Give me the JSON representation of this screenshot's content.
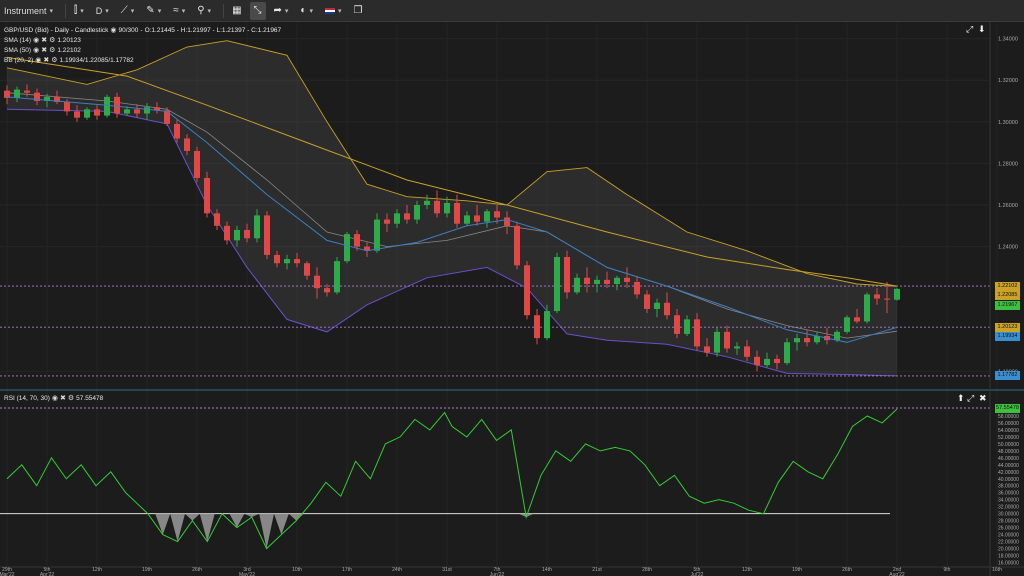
{
  "toolbar": {
    "instrument_label": "Instrument",
    "timeframe_label": "D",
    "icons": [
      "chart-type-icon",
      "draw-line-icon",
      "pencil-icon",
      "indicators-icon",
      "tools-icon",
      "layout-grid-icon",
      "share-icon",
      "theme-icon",
      "language-flag-icon",
      "window-icon"
    ]
  },
  "main_panel": {
    "title_line": "GBP/USD (Bid) - Daily - Candlestick",
    "bars_info": "90/300",
    "ohlc": "O:1.21445 - H:1.21997 - L:1.21397 - C:1.21967",
    "indicators": [
      {
        "name": "SMA (14)",
        "value": "1.20123"
      },
      {
        "name": "SMA (50)",
        "value": "1.22102"
      },
      {
        "name": "BB (20, 2)",
        "value": "1.19934/1.22085/1.17782"
      }
    ]
  },
  "rsi_panel": {
    "name": "RSI (14, 70, 30)",
    "value": "57.55478"
  },
  "axis_flags": [
    {
      "label": "1.22102",
      "price": 1.22102,
      "bg": "#c9a227"
    },
    {
      "label": "1.22085",
      "price": 1.22085,
      "bg": "#c9a227"
    },
    {
      "label": "1.21967",
      "price": 1.21967,
      "bg": "#3fbf3f"
    },
    {
      "label": "1.20123",
      "price": 1.20123,
      "bg": "#c9a227"
    },
    {
      "label": "1.19934",
      "price": 1.19934,
      "bg": "#3a8fd0"
    },
    {
      "label": "1.17782",
      "price": 1.17782,
      "bg": "#3a8fd0"
    }
  ],
  "rsi_flag": {
    "label": "57.55478",
    "bg": "#3fbf3f"
  },
  "colors": {
    "up": "#2eaa4a",
    "down": "#e04848",
    "sma14": "#3a7fc0",
    "sma50": "#c9a227",
    "bb_outer": "#c9a227",
    "bb_lower": "#6a4fd0",
    "rsi": "#33cc33",
    "hline": "#b07cd0"
  },
  "chart_data": {
    "type": "candlestick",
    "instrument": "GBP/USD (Bid)",
    "timeframe": "Daily",
    "price_axis": {
      "range": [
        1.172,
        1.348
      ],
      "ticks": [
        1.34,
        1.32,
        1.3,
        1.28,
        1.26,
        1.24,
        1.18
      ],
      "tick_labels": [
        "1.34000",
        "1.32000",
        "1.30000",
        "1.28000",
        "1.26000",
        "1.24000",
        "1.18000"
      ]
    },
    "x_labels": [
      {
        "idx": 0,
        "label": "29th",
        "sub": "Mar'22"
      },
      {
        "idx": 4,
        "label": "5th",
        "sub": "Apr'22"
      },
      {
        "idx": 9,
        "label": "12th"
      },
      {
        "idx": 14,
        "label": "19th"
      },
      {
        "idx": 19,
        "label": "26th"
      },
      {
        "idx": 24,
        "label": "3rd",
        "sub": "May'22"
      },
      {
        "idx": 29,
        "label": "10th"
      },
      {
        "idx": 34,
        "label": "17th"
      },
      {
        "idx": 39,
        "label": "24th"
      },
      {
        "idx": 44,
        "label": "31st"
      },
      {
        "idx": 49,
        "label": "7th",
        "sub": "Jun'22"
      },
      {
        "idx": 54,
        "label": "14th"
      },
      {
        "idx": 59,
        "label": "21st"
      },
      {
        "idx": 64,
        "label": "28th"
      },
      {
        "idx": 69,
        "label": "5th",
        "sub": "Jul'22"
      },
      {
        "idx": 74,
        "label": "12th"
      },
      {
        "idx": 79,
        "label": "19th"
      },
      {
        "idx": 84,
        "label": "26th"
      },
      {
        "idx": 89,
        "label": "2nd",
        "sub": "Aug'22"
      },
      {
        "idx": 94,
        "label": "9th"
      },
      {
        "idx": 99,
        "label": "16th"
      }
    ],
    "candles": [
      [
        1.315,
        1.3175,
        1.3085,
        1.3115
      ],
      [
        1.3115,
        1.317,
        1.3095,
        1.3155
      ],
      [
        1.315,
        1.318,
        1.312,
        1.314
      ],
      [
        1.314,
        1.316,
        1.308,
        1.31
      ],
      [
        1.31,
        1.3135,
        1.307,
        1.312
      ],
      [
        1.312,
        1.315,
        1.3085,
        1.3095
      ],
      [
        1.3095,
        1.311,
        1.303,
        1.305
      ],
      [
        1.305,
        1.308,
        1.3,
        1.302
      ],
      [
        1.302,
        1.307,
        1.301,
        1.306
      ],
      [
        1.306,
        1.308,
        1.301,
        1.303
      ],
      [
        1.303,
        1.313,
        1.302,
        1.312
      ],
      [
        1.312,
        1.314,
        1.302,
        1.304
      ],
      [
        1.304,
        1.3075,
        1.303,
        1.306
      ],
      [
        1.306,
        1.3085,
        1.302,
        1.304
      ],
      [
        1.304,
        1.309,
        1.301,
        1.307
      ],
      [
        1.307,
        1.3095,
        1.304,
        1.3055
      ],
      [
        1.3055,
        1.307,
        1.298,
        1.299
      ],
      [
        1.299,
        1.301,
        1.29,
        1.292
      ],
      [
        1.292,
        1.294,
        1.284,
        1.286
      ],
      [
        1.286,
        1.288,
        1.271,
        1.273
      ],
      [
        1.273,
        1.276,
        1.254,
        1.256
      ],
      [
        1.256,
        1.258,
        1.248,
        1.25
      ],
      [
        1.25,
        1.252,
        1.241,
        1.243
      ],
      [
        1.243,
        1.25,
        1.24,
        1.248
      ],
      [
        1.248,
        1.251,
        1.242,
        1.244
      ],
      [
        1.244,
        1.258,
        1.242,
        1.255
      ],
      [
        1.255,
        1.257,
        1.234,
        1.236
      ],
      [
        1.236,
        1.238,
        1.23,
        1.232
      ],
      [
        1.232,
        1.236,
        1.229,
        1.234
      ],
      [
        1.234,
        1.237,
        1.23,
        1.232
      ],
      [
        1.232,
        1.233,
        1.224,
        1.226
      ],
      [
        1.226,
        1.23,
        1.215,
        1.22
      ],
      [
        1.22,
        1.222,
        1.216,
        1.218
      ],
      [
        1.218,
        1.235,
        1.217,
        1.233
      ],
      [
        1.233,
        1.247,
        1.232,
        1.246
      ],
      [
        1.246,
        1.248,
        1.238,
        1.24
      ],
      [
        1.24,
        1.242,
        1.235,
        1.238
      ],
      [
        1.238,
        1.256,
        1.237,
        1.253
      ],
      [
        1.253,
        1.256,
        1.247,
        1.251
      ],
      [
        1.251,
        1.258,
        1.249,
        1.256
      ],
      [
        1.256,
        1.26,
        1.251,
        1.253
      ],
      [
        1.253,
        1.262,
        1.251,
        1.26
      ],
      [
        1.26,
        1.265,
        1.258,
        1.262
      ],
      [
        1.262,
        1.267,
        1.254,
        1.256
      ],
      [
        1.256,
        1.264,
        1.254,
        1.261
      ],
      [
        1.261,
        1.265,
        1.249,
        1.251
      ],
      [
        1.251,
        1.257,
        1.25,
        1.255
      ],
      [
        1.255,
        1.26,
        1.25,
        1.252
      ],
      [
        1.252,
        1.258,
        1.249,
        1.257
      ],
      [
        1.257,
        1.26,
        1.251,
        1.254
      ],
      [
        1.254,
        1.257,
        1.246,
        1.25
      ],
      [
        1.25,
        1.252,
        1.229,
        1.231
      ],
      [
        1.231,
        1.233,
        1.205,
        1.207
      ],
      [
        1.207,
        1.21,
        1.193,
        1.196
      ],
      [
        1.196,
        1.212,
        1.195,
        1.209
      ],
      [
        1.209,
        1.237,
        1.208,
        1.235
      ],
      [
        1.235,
        1.238,
        1.215,
        1.218
      ],
      [
        1.218,
        1.227,
        1.217,
        1.225
      ],
      [
        1.225,
        1.23,
        1.218,
        1.222
      ],
      [
        1.222,
        1.226,
        1.218,
        1.224
      ],
      [
        1.224,
        1.228,
        1.22,
        1.222
      ],
      [
        1.222,
        1.226,
        1.219,
        1.225
      ],
      [
        1.225,
        1.23,
        1.22,
        1.223
      ],
      [
        1.223,
        1.226,
        1.215,
        1.217
      ],
      [
        1.217,
        1.219,
        1.208,
        1.21
      ],
      [
        1.21,
        1.215,
        1.206,
        1.213
      ],
      [
        1.213,
        1.218,
        1.205,
        1.207
      ],
      [
        1.207,
        1.21,
        1.196,
        1.198
      ],
      [
        1.198,
        1.207,
        1.197,
        1.205
      ],
      [
        1.205,
        1.208,
        1.19,
        1.192
      ],
      [
        1.192,
        1.196,
        1.187,
        1.189
      ],
      [
        1.189,
        1.201,
        1.187,
        1.199
      ],
      [
        1.199,
        1.202,
        1.189,
        1.191
      ],
      [
        1.191,
        1.194,
        1.188,
        1.192
      ],
      [
        1.192,
        1.195,
        1.185,
        1.187
      ],
      [
        1.187,
        1.19,
        1.18,
        1.183
      ],
      [
        1.183,
        1.189,
        1.182,
        1.186
      ],
      [
        1.186,
        1.188,
        1.181,
        1.184
      ],
      [
        1.184,
        1.196,
        1.183,
        1.194
      ],
      [
        1.194,
        1.198,
        1.19,
        1.196
      ],
      [
        1.196,
        1.2,
        1.192,
        1.194
      ],
      [
        1.194,
        1.199,
        1.193,
        1.197
      ],
      [
        1.197,
        1.201,
        1.193,
        1.195
      ],
      [
        1.195,
        1.2,
        1.194,
        1.199
      ],
      [
        1.199,
        1.207,
        1.198,
        1.206
      ],
      [
        1.206,
        1.21,
        1.203,
        1.204
      ],
      [
        1.204,
        1.218,
        1.203,
        1.217
      ],
      [
        1.217,
        1.22,
        1.212,
        1.215
      ],
      [
        1.215,
        1.223,
        1.208,
        1.2145
      ],
      [
        1.21445,
        1.21997,
        1.21397,
        1.21967
      ]
    ],
    "sma14": [
      [
        0,
        1.312
      ],
      [
        10,
        1.308
      ],
      [
        16,
        1.305
      ],
      [
        20,
        1.29
      ],
      [
        26,
        1.265
      ],
      [
        32,
        1.243
      ],
      [
        36,
        1.238
      ],
      [
        41,
        1.242
      ],
      [
        46,
        1.25
      ],
      [
        50,
        1.253
      ],
      [
        54,
        1.247
      ],
      [
        60,
        1.23
      ],
      [
        66,
        1.221
      ],
      [
        72,
        1.211
      ],
      [
        78,
        1.2
      ],
      [
        84,
        1.194
      ],
      [
        89,
        1.2012
      ]
    ],
    "sma50": [
      [
        0,
        1.331
      ],
      [
        12,
        1.322
      ],
      [
        20,
        1.308
      ],
      [
        30,
        1.29
      ],
      [
        40,
        1.272
      ],
      [
        50,
        1.26
      ],
      [
        60,
        1.247
      ],
      [
        70,
        1.235
      ],
      [
        78,
        1.229
      ],
      [
        84,
        1.225
      ],
      [
        89,
        1.221
      ]
    ],
    "bb_upper": [
      [
        0,
        1.326
      ],
      [
        8,
        1.318
      ],
      [
        13,
        1.325
      ],
      [
        18,
        1.336
      ],
      [
        22,
        1.339
      ],
      [
        28,
        1.332
      ],
      [
        32,
        1.3
      ],
      [
        36,
        1.27
      ],
      [
        40,
        1.264
      ],
      [
        46,
        1.262
      ],
      [
        50,
        1.26
      ],
      [
        54,
        1.276
      ],
      [
        58,
        1.278
      ],
      [
        62,
        1.265
      ],
      [
        68,
        1.247
      ],
      [
        74,
        1.238
      ],
      [
        80,
        1.227
      ],
      [
        85,
        1.222
      ],
      [
        89,
        1.2209
      ]
    ],
    "bb_middle": [
      [
        0,
        1.314
      ],
      [
        10,
        1.31
      ],
      [
        16,
        1.306
      ],
      [
        20,
        1.295
      ],
      [
        26,
        1.272
      ],
      [
        32,
        1.247
      ],
      [
        38,
        1.24
      ],
      [
        44,
        1.243
      ],
      [
        50,
        1.25
      ],
      [
        54,
        1.247
      ],
      [
        60,
        1.23
      ],
      [
        66,
        1.221
      ],
      [
        72,
        1.21
      ],
      [
        78,
        1.202
      ],
      [
        84,
        1.196
      ],
      [
        89,
        1.1993
      ]
    ],
    "bb_lower": [
      [
        0,
        1.306
      ],
      [
        10,
        1.305
      ],
      [
        16,
        1.299
      ],
      [
        20,
        1.26
      ],
      [
        24,
        1.23
      ],
      [
        28,
        1.205
      ],
      [
        32,
        1.199
      ],
      [
        36,
        1.212
      ],
      [
        42,
        1.225
      ],
      [
        48,
        1.23
      ],
      [
        52,
        1.22
      ],
      [
        56,
        1.198
      ],
      [
        60,
        1.195
      ],
      [
        66,
        1.193
      ],
      [
        72,
        1.187
      ],
      [
        78,
        1.179
      ],
      [
        84,
        1.1785
      ],
      [
        89,
        1.1778
      ]
    ],
    "hlines": [
      1.22102,
      1.20123,
      1.17782
    ],
    "rsi": {
      "name": "RSI (14, 70, 30)",
      "range": [
        15,
        62
      ],
      "ticks": [
        16,
        18,
        20,
        22,
        24,
        26,
        28,
        30,
        32,
        34,
        36,
        38,
        40,
        42,
        44,
        46,
        48,
        50,
        52,
        54,
        56,
        58,
        60
      ],
      "levels": [
        70,
        30
      ],
      "values": [
        [
          0,
          40
        ],
        [
          2,
          44
        ],
        [
          4,
          38
        ],
        [
          6,
          46
        ],
        [
          8,
          40
        ],
        [
          10,
          44
        ],
        [
          12,
          38
        ],
        [
          14,
          42
        ],
        [
          16,
          36
        ],
        [
          19,
          30
        ],
        [
          21,
          24
        ],
        [
          23,
          22
        ],
        [
          25,
          28
        ],
        [
          27,
          22
        ],
        [
          29,
          30
        ],
        [
          31,
          26
        ],
        [
          33,
          29
        ],
        [
          35,
          20
        ],
        [
          37,
          24
        ],
        [
          39,
          28
        ],
        [
          41,
          33
        ],
        [
          43,
          39
        ],
        [
          45,
          35
        ],
        [
          47,
          45
        ],
        [
          49,
          40
        ],
        [
          51,
          50
        ],
        [
          53,
          52
        ],
        [
          55,
          57
        ],
        [
          57,
          54
        ],
        [
          59,
          59
        ],
        [
          60,
          55
        ],
        [
          62,
          52
        ],
        [
          64,
          57
        ],
        [
          66,
          51
        ],
        [
          68,
          54
        ],
        [
          70,
          29
        ],
        [
          72,
          41
        ],
        [
          74,
          48
        ],
        [
          76,
          45
        ],
        [
          78,
          50
        ],
        [
          80,
          48
        ],
        [
          82,
          49
        ],
        [
          84,
          48
        ],
        [
          86,
          44
        ],
        [
          88,
          38
        ],
        [
          90,
          41
        ],
        [
          92,
          35
        ],
        [
          94,
          33
        ],
        [
          96,
          34
        ],
        [
          98,
          33
        ],
        [
          100,
          31
        ],
        [
          102,
          30
        ],
        [
          104,
          39
        ],
        [
          106,
          45
        ],
        [
          108,
          42
        ],
        [
          110,
          40
        ],
        [
          112,
          47
        ],
        [
          114,
          55
        ],
        [
          116,
          58
        ],
        [
          118,
          56
        ],
        [
          120,
          60
        ]
      ]
    }
  }
}
